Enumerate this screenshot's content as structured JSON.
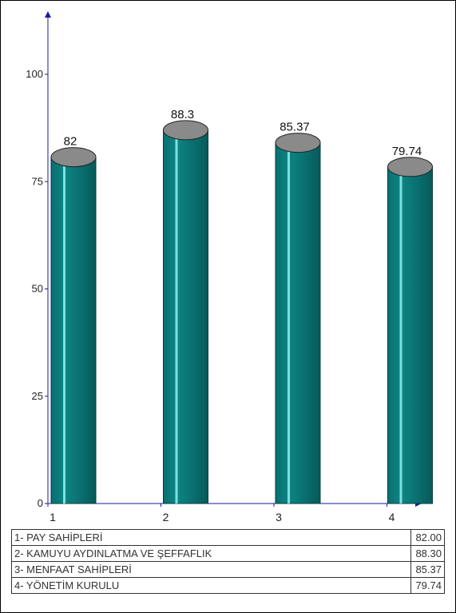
{
  "chart_data": {
    "type": "bar",
    "style": "3d-cylinder",
    "categories": [
      "1",
      "2",
      "3",
      "4"
    ],
    "values": [
      82,
      88.3,
      85.37,
      79.74
    ],
    "data_labels": [
      "82",
      "88.3",
      "85.37",
      "79.74"
    ],
    "title": "",
    "xlabel": "",
    "ylabel": "",
    "ylim": [
      0,
      100
    ],
    "yticks": [
      0,
      25,
      50,
      75,
      100
    ],
    "grid": false,
    "colors": {
      "bar": "#0b7b7b",
      "bar_highlight": "#7fe0e0",
      "bar_cap": "#8a8a8a",
      "axis": "#1a1aa0"
    }
  },
  "legend": [
    {
      "label": "1- PAY SAHİPLERİ",
      "value": "82.00"
    },
    {
      "label": "2- KAMUYU AYDINLATMA VE ŞEFFAFLIK",
      "value": "88.30"
    },
    {
      "label": "3- MENFAAT SAHİPLERİ",
      "value": "85.37"
    },
    {
      "label": "4- YÖNETİM KURULU",
      "value": "79.74"
    }
  ]
}
